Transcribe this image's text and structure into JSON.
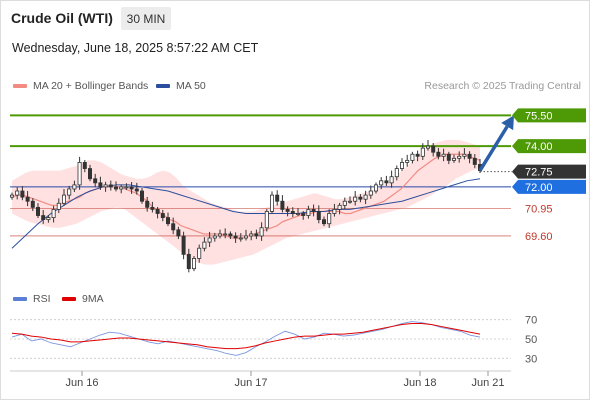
{
  "header": {
    "title": "Crude Oil (WTI)",
    "timeframe": "30 MIN"
  },
  "timestamp": "Wednesday, June 18, 2025 8:57:22 AM CET",
  "legend": {
    "bollinger": "MA 20 + Bollinger Bands",
    "ma50": "MA 50",
    "rsi": "RSI",
    "rsi_ma": "9MA"
  },
  "credit": "Research © 2025 Trading Central",
  "colors": {
    "resistance": "#4e9a06",
    "support": "#2848a8",
    "pivot": "#1f6fe0",
    "last": "#333333",
    "level": "#c0392b",
    "band": "#ffd9d9",
    "ma20": "#f28b82",
    "ma50": "#2b4f9e",
    "arrow": "#2b5fa8",
    "candle": "#333333"
  },
  "chart_data": {
    "type": "candlestick",
    "x_labels": [
      "Jun 16",
      "Jun 17",
      "Jun 18",
      "Jun 21"
    ],
    "y_range": [
      67.2,
      76.5
    ],
    "levels": [
      {
        "value": 75.5,
        "label": "75.50",
        "kind": "resistance"
      },
      {
        "value": 74.0,
        "label": "74.00",
        "kind": "resistance"
      },
      {
        "value": 72.75,
        "label": "72.75",
        "kind": "last"
      },
      {
        "value": 72.0,
        "label": "72.00",
        "kind": "pivot"
      },
      {
        "value": 70.95,
        "label": "70.95",
        "kind": "support"
      },
      {
        "value": 69.6,
        "label": "69.60",
        "kind": "support"
      }
    ],
    "close": [
      71.6,
      71.8,
      71.5,
      71.3,
      71.0,
      70.6,
      70.4,
      70.5,
      70.9,
      71.2,
      71.6,
      71.9,
      72.1,
      73.2,
      72.9,
      72.4,
      72.2,
      72.0,
      72.1,
      72.0,
      71.9,
      72.0,
      72.0,
      71.9,
      71.8,
      71.3,
      71.0,
      70.9,
      70.7,
      70.5,
      70.2,
      69.9,
      69.6,
      68.7,
      68.0,
      68.5,
      69.0,
      69.3,
      69.5,
      69.6,
      69.7,
      69.7,
      69.6,
      69.5,
      69.5,
      69.6,
      69.7,
      69.6,
      70.0,
      70.8,
      71.6,
      71.3,
      70.9,
      70.8,
      70.7,
      70.7,
      70.6,
      70.9,
      70.8,
      70.4,
      70.2,
      70.7,
      70.9,
      71.1,
      71.3,
      71.3,
      71.5,
      71.4,
      71.6,
      71.8,
      72.1,
      72.3,
      72.2,
      72.5,
      72.9,
      73.2,
      73.3,
      73.6,
      73.5,
      73.9,
      74.0,
      73.7,
      73.5,
      73.6,
      73.3,
      73.4,
      73.5,
      73.6,
      73.4,
      73.1,
      72.8
    ],
    "ma20": [
      71.5,
      71.6,
      71.6,
      71.5,
      71.4,
      71.3,
      71.2,
      71.1,
      71.1,
      71.2,
      71.3,
      71.4,
      71.5,
      71.7,
      71.8,
      71.9,
      72.0,
      72.0,
      72.0,
      72.0,
      71.9,
      71.8,
      71.7,
      71.5,
      71.3,
      71.0,
      70.8,
      70.6,
      70.4,
      70.3,
      70.1,
      70.0,
      69.9,
      69.8,
      69.7,
      69.7,
      69.7,
      69.7,
      69.6,
      69.5,
      69.5,
      69.5,
      69.6,
      69.7,
      69.8,
      69.9,
      70.0,
      70.1,
      70.3,
      70.4,
      70.5,
      70.6,
      70.7,
      70.7,
      70.8,
      70.8,
      70.8,
      70.8,
      70.8,
      70.7,
      70.7,
      70.8,
      70.9,
      71.0,
      71.1,
      71.2,
      71.3,
      71.5,
      71.7,
      71.9,
      72.2,
      72.5,
      72.8,
      73.0,
      73.2,
      73.4,
      73.5,
      73.6,
      73.6,
      73.6,
      73.6,
      73.5,
      73.4,
      73.3
    ],
    "bb_upper": [
      72.3,
      72.5,
      72.7,
      72.8,
      72.8,
      72.8,
      72.8,
      72.8,
      72.9,
      73.0,
      73.1,
      73.3,
      73.3,
      73.2,
      73.0,
      72.8,
      72.6,
      72.5,
      72.4,
      72.4,
      72.5,
      72.7,
      72.8,
      72.7,
      72.4,
      72.0,
      71.8,
      71.6,
      71.4,
      71.2,
      71.1,
      71.0,
      70.9,
      70.8,
      70.8,
      70.8,
      70.9,
      71.0,
      71.1,
      71.2,
      71.3,
      71.4,
      71.5,
      71.6,
      71.7,
      71.6,
      71.5,
      71.4,
      71.4,
      71.5,
      71.6,
      71.7,
      71.8,
      71.9,
      72.1,
      72.3,
      72.6,
      72.9,
      73.2,
      73.5,
      73.8,
      74.1,
      74.2,
      74.3,
      74.3,
      74.3,
      74.2,
      74.1,
      74.0
    ],
    "bb_lower": [
      70.7,
      70.5,
      70.3,
      70.2,
      70.1,
      70.0,
      70.0,
      70.1,
      70.2,
      70.4,
      70.6,
      70.8,
      70.9,
      71.0,
      70.9,
      70.6,
      70.3,
      70.0,
      69.7,
      69.4,
      69.1,
      68.8,
      68.5,
      68.3,
      68.2,
      68.2,
      68.3,
      68.4,
      68.5,
      68.6,
      68.7,
      68.9,
      69.1,
      69.3,
      69.5,
      69.6,
      69.7,
      69.8,
      69.9,
      70.0,
      70.1,
      70.2,
      70.3,
      70.4,
      70.5,
      70.6,
      70.7,
      70.8,
      70.9,
      71.0,
      71.2,
      71.4,
      71.6,
      71.9,
      72.1,
      72.4,
      72.6,
      72.8,
      72.9
    ],
    "ma50": [
      69.0,
      69.6,
      70.2,
      70.7,
      71.1,
      71.5,
      71.8,
      72.0,
      72.1,
      72.1,
      72.0,
      71.9,
      71.8,
      71.6,
      71.4,
      71.2,
      71.0,
      70.8,
      70.7,
      70.7,
      70.7,
      70.7,
      70.7,
      70.8,
      70.8,
      70.9,
      70.9,
      71.0,
      71.1,
      71.2,
      71.3,
      71.5,
      71.7,
      71.9,
      72.1,
      72.3,
      72.4
    ],
    "rsi": [
      52,
      55,
      48,
      50,
      46,
      44,
      42,
      46,
      50,
      54,
      57,
      56,
      53,
      50,
      47,
      45,
      48,
      46,
      44,
      42,
      40,
      38,
      35,
      33,
      36,
      42,
      47,
      53,
      58,
      55,
      50,
      52,
      56,
      55,
      53,
      54,
      56,
      58,
      60,
      63,
      66,
      68,
      67,
      65,
      62,
      60,
      58,
      54,
      52
    ],
    "rsi_ma": [
      56,
      55,
      53,
      52,
      50,
      49,
      47,
      47,
      48,
      49,
      50,
      51,
      51,
      50,
      49,
      48,
      47,
      46,
      45,
      44,
      42,
      41,
      40,
      40,
      41,
      43,
      46,
      48,
      50,
      52,
      53,
      53,
      54,
      55,
      55,
      56,
      57,
      59,
      61,
      63,
      65,
      66,
      66,
      65,
      63,
      61,
      59,
      57,
      55
    ],
    "rsi_ticks": [
      "70",
      "50",
      "30"
    ]
  }
}
